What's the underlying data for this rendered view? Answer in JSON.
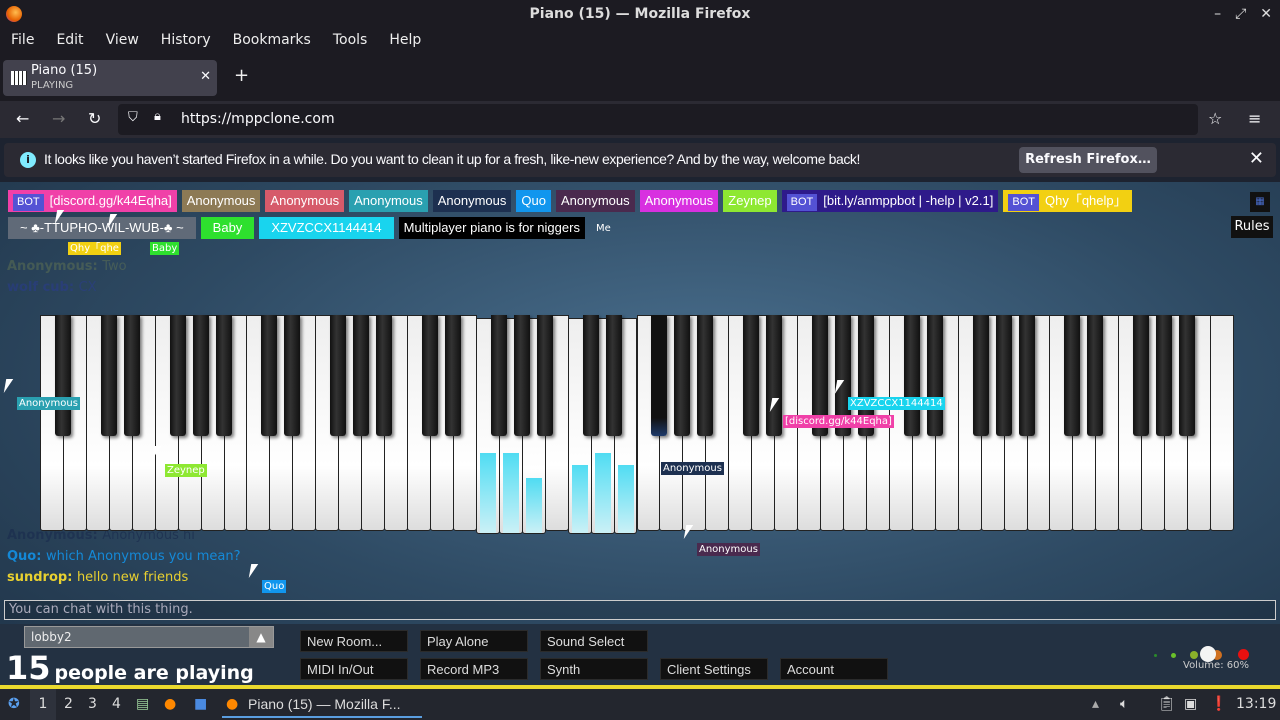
{
  "window": {
    "title": "Piano (15) — Mozilla Firefox"
  },
  "menu": [
    "File",
    "Edit",
    "View",
    "History",
    "Bookmarks",
    "Tools",
    "Help"
  ],
  "tab": {
    "title": "Piano (15)",
    "subtitle": "PLAYING"
  },
  "address": {
    "url": "https://mppclone.com"
  },
  "notification": {
    "message": "It looks like you haven’t started Firefox in a while. Do you want to clean it up for a fresh, like-new experience? And by the way, welcome back!",
    "button": "Refresh Firefox…"
  },
  "users": [
    {
      "name": "[discord.gg/k44Eqha]",
      "bot": true,
      "color": "#f040a8"
    },
    {
      "name": "Anonymous",
      "color": "#8d7a55"
    },
    {
      "name": "Anonymous",
      "color": "#d65a6a"
    },
    {
      "name": "Anonymous",
      "color": "#2aa0b0"
    },
    {
      "name": "Anonymous",
      "color": "#1d3050"
    },
    {
      "name": "Quo",
      "color": "#1196ee"
    },
    {
      "name": "Anonymous",
      "color": "#4a2a4e"
    },
    {
      "name": "Anonymous",
      "color": "#d830e0"
    },
    {
      "name": "Zeynep",
      "color": "#8ee832"
    },
    {
      "name": "[bit.ly/anmppbot | -help | v2.1]",
      "bot": true,
      "color": "#2e1a8a"
    },
    {
      "name": "Qhy「qhelp」",
      "bot": true,
      "color": "#f2d012"
    },
    {
      "name": "~ ♣-TTUPHO-WIL-WUB-♣ ~",
      "color": "#606a78"
    },
    {
      "name": "Baby",
      "color": "#2ee02e"
    },
    {
      "name": "XZVZCCX1144414",
      "color": "#19d4ee"
    },
    {
      "name": "Multiplayer piano is for niggers",
      "color": "#000000"
    }
  ],
  "bot_tag": "BOT",
  "me_label": "Me",
  "rules_button": "Rules",
  "chat": [
    {
      "user": "Anonymous:",
      "text": "Two",
      "color": "#7a8a50",
      "fade": 0.35
    },
    {
      "user": "wolf cub:",
      "text": "CX",
      "color": "#2a3a9a",
      "fade": 0.45
    },
    {
      "user": "Anonymous:",
      "text": "Anonymous hi",
      "color": "#1d3050",
      "fade": 0.8
    },
    {
      "user": "Quo:",
      "text": "which Anonymous you mean?",
      "color": "#1196ee",
      "fade": 0.85
    },
    {
      "user": "sundrop:",
      "text": "hello new friends",
      "color": "#e8d030",
      "fade": 1
    }
  ],
  "piano": {
    "white_keys": 52,
    "pressed_white": [
      "F3",
      "G3",
      "A3",
      "C4",
      "D4",
      "E4"
    ],
    "pressed_black": [
      "F#4"
    ],
    "note_color": "#31d6f0"
  },
  "cursors": [
    {
      "name": "Anonymous",
      "color": "#2aa0b0"
    },
    {
      "name": "Zeynep",
      "color": "#8ee832"
    },
    {
      "name": "Anonymous",
      "color": "#1d3050"
    },
    {
      "name": "[discord.gg/k44Eqha]",
      "color": "#f040a8"
    },
    {
      "name": "XZVZCCX1144414",
      "color": "#19d4ee"
    },
    {
      "name": "Anonymous",
      "color": "#4a2a4e"
    },
    {
      "name": "Qhy「qhe",
      "color": "#f2d012"
    },
    {
      "name": "Baby",
      "color": "#2ee02e"
    },
    {
      "name": "Quo",
      "color": "#1196ee"
    }
  ],
  "chat_input": {
    "placeholder": "You can chat with this thing."
  },
  "room": {
    "value": "lobby2"
  },
  "people": {
    "count": "15",
    "label": "people are playing"
  },
  "buttons": [
    "New Room...",
    "Play Alone",
    "Sound Select",
    "MIDI In/Out",
    "Record MP3",
    "Synth",
    "Client Settings",
    "Account"
  ],
  "volume": {
    "label": "Volume: 60%",
    "value": 60
  },
  "taskbar": {
    "workspaces": [
      "1",
      "2",
      "3",
      "4"
    ],
    "task": "Piano (15) — Mozilla F...",
    "clock": "13:19"
  }
}
